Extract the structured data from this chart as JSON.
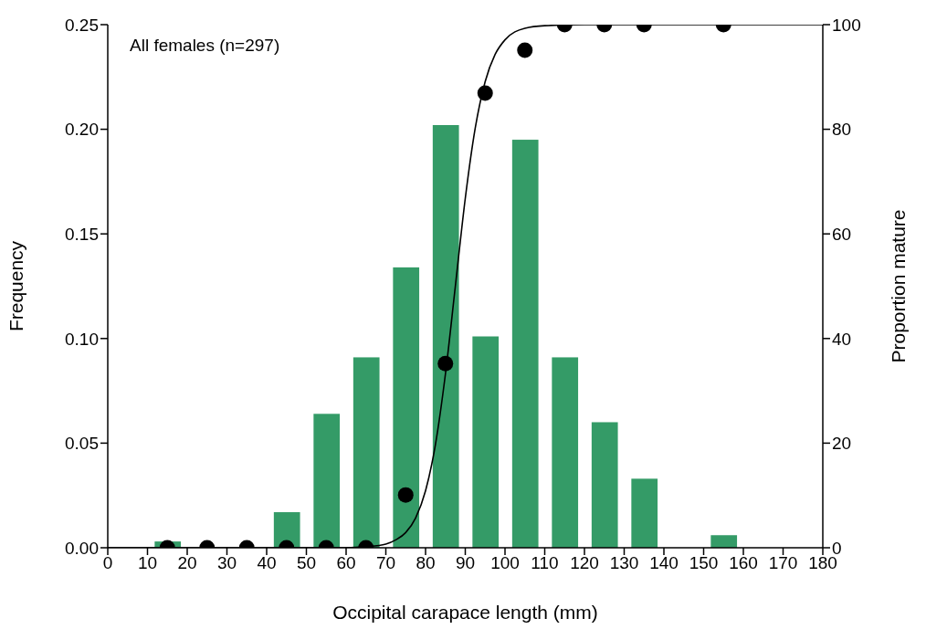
{
  "chart_data": {
    "type": "histogram",
    "xlabel": "Occipital carapace length (mm)",
    "ylabel": "Frequency",
    "y2label": "Proportion mature",
    "annotations": [
      "All females (n=297)"
    ],
    "bins": [
      10,
      20,
      30,
      40,
      50,
      60,
      70,
      80,
      90,
      100,
      110,
      120,
      130,
      140,
      150,
      160
    ],
    "series": [
      {
        "color": "#349b67",
        "values": [
          0.003,
          0,
          0,
          0.017,
          0.064,
          0.091,
          0.134,
          0.202,
          0.101,
          0.195,
          0.091,
          0.06,
          0.033,
          0,
          0.006
        ]
      },
      {
        "type": "line",
        "axis": "y2",
        "color": "#000000",
        "marker": "none",
        "line_style": "solid",
        "x": [
          0,
          60,
          65,
          70,
          72.5,
          75,
          77.5,
          80,
          82.5,
          85,
          87.5,
          90,
          92.5,
          95,
          97.5,
          100,
          105,
          110,
          120,
          180
        ],
        "values": [
          0,
          0,
          0.2,
          0.7,
          1.5,
          2.9,
          5.7,
          10.9,
          19.8,
          33.2,
          50,
          66.8,
          80.2,
          89.1,
          94.3,
          97.1,
          99.3,
          99.8,
          100,
          100
        ]
      },
      {
        "type": "scatter",
        "axis": "y2",
        "color": "#000000",
        "marker": "circle",
        "x": [
          15,
          25,
          35,
          45,
          55,
          65,
          75,
          85,
          95,
          105,
          115,
          125,
          135,
          155
        ],
        "values": [
          0,
          0,
          0,
          0,
          0,
          0,
          10.1,
          35.2,
          86.9,
          95.1,
          100,
          100,
          100,
          100
        ]
      }
    ],
    "xlim": [
      0,
      180
    ],
    "xticks": [
      0,
      10,
      20,
      30,
      40,
      50,
      60,
      70,
      80,
      90,
      100,
      110,
      120,
      130,
      140,
      150,
      160,
      170,
      180
    ],
    "ylim": [
      0,
      0.25
    ],
    "yticks": [
      {
        "value": 0,
        "label": "0.00"
      },
      {
        "value": 0.05,
        "label": "0.05"
      },
      {
        "value": 0.1,
        "label": "0.10"
      },
      {
        "value": 0.15,
        "label": "0.15"
      },
      {
        "value": 0.2,
        "label": "0.20"
      },
      {
        "value": 0.25,
        "label": "0.25"
      }
    ],
    "y2lim": [
      0,
      100
    ],
    "y2ticks": [
      0,
      20,
      40,
      60,
      80,
      100
    ],
    "grid": false
  }
}
